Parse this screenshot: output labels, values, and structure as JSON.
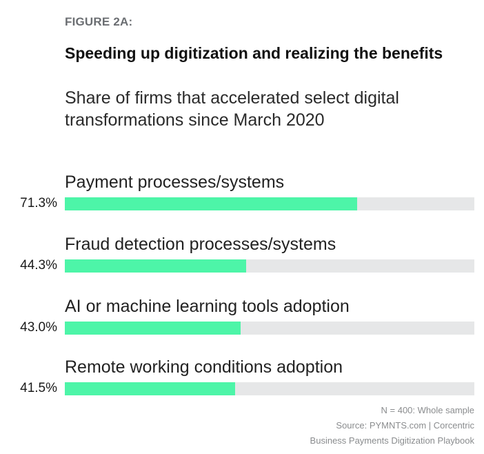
{
  "figure_label": "FIGURE 2A:",
  "title": "Speeding up digitization and realizing the benefits",
  "subtitle": "Share of firms that accelerated select digital transformations since March 2020",
  "colors": {
    "bar_fill": "#4df5a8",
    "bar_track": "#e6e7e8"
  },
  "chart_data": {
    "type": "bar",
    "orientation": "horizontal",
    "categories": [
      "Payment processes/systems",
      "Fraud detection processes/systems",
      "AI or machine learning tools adoption",
      "Remote working conditions adoption"
    ],
    "values": [
      71.3,
      44.3,
      43.0,
      41.5
    ],
    "value_labels": [
      "71.3%",
      "44.3%",
      "43.0%",
      "41.5%"
    ],
    "xlim": [
      0,
      100
    ],
    "grid": false
  },
  "footer": {
    "sample": "N = 400: Whole sample",
    "source": "Source: PYMNTS.com | Corcentric",
    "publication": "Business Payments Digitization Playbook"
  }
}
